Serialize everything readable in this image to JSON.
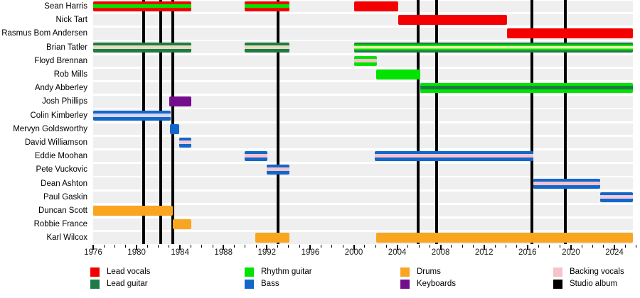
{
  "chart_data": {
    "type": "timeline",
    "description": "Band member timeline gantt chart with studio album release lines",
    "x_axis": {
      "start_year": 1976,
      "end_year": 2025.7,
      "tick_every_years": 1,
      "label_every_years": 4,
      "tick_labels": [
        "1976",
        "1980",
        "1984",
        "1988",
        "1992",
        "1996",
        "2000",
        "2004",
        "2008",
        "2012",
        "2016",
        "2020",
        "2024"
      ]
    },
    "album_release_years": [
      1980.65,
      1982.2,
      1983.35,
      1993.0,
      2005.9,
      2007.65,
      2016.4,
      2019.5
    ],
    "members": [
      {
        "name": "Sean Harris",
        "segments": [
          {
            "start": 1976.0,
            "end": 1985.05,
            "base": "lead_vocals",
            "stripes": [
              "rhythm_guitar"
            ]
          },
          {
            "start": 1989.95,
            "end": 1994.1,
            "base": "lead_vocals",
            "stripes": [
              "rhythm_guitar"
            ]
          },
          {
            "start": 2000.0,
            "end": 2004.1,
            "base": "lead_vocals",
            "stripes": []
          }
        ]
      },
      {
        "name": "Nick Tart",
        "segments": [
          {
            "start": 2004.1,
            "end": 2014.1,
            "base": "lead_vocals",
            "stripes": []
          }
        ]
      },
      {
        "name": "Rasmus Bom Andersen",
        "segments": [
          {
            "start": 2014.1,
            "end": 2025.7,
            "base": "lead_vocals",
            "stripes": []
          }
        ]
      },
      {
        "name": "Brian Tatler",
        "segments": [
          {
            "start": 1976.0,
            "end": 1985.05,
            "base": "lead_guitar",
            "stripes": [
              "stripe_wheat"
            ]
          },
          {
            "start": 1989.95,
            "end": 1994.1,
            "base": "lead_guitar",
            "stripes": [
              "stripe_wheat"
            ]
          },
          {
            "start": 2000.0,
            "end": 2025.7,
            "base": "lead_guitar",
            "stripes": [
              "rhythm_guitar",
              "stripe_pale_yellow"
            ]
          }
        ]
      },
      {
        "name": "Floyd Brennan",
        "segments": [
          {
            "start": 2000.0,
            "end": 2002.1,
            "base": "rhythm_guitar",
            "stripes": [
              "backing_vocals"
            ]
          }
        ]
      },
      {
        "name": "Rob Mills",
        "segments": [
          {
            "start": 2002.05,
            "end": 2006.1,
            "base": "rhythm_guitar",
            "stripes": []
          }
        ]
      },
      {
        "name": "Andy Abberley",
        "segments": [
          {
            "start": 2006.15,
            "end": 2025.7,
            "base": "rhythm_guitar",
            "stripes": [
              "lead_guitar"
            ]
          }
        ]
      },
      {
        "name": "Josh Phillips",
        "segments": [
          {
            "start": 1983.0,
            "end": 1985.05,
            "base": "keyboards",
            "stripes": []
          }
        ]
      },
      {
        "name": "Colin Kimberley",
        "segments": [
          {
            "start": 1976.0,
            "end": 1983.15,
            "base": "bass",
            "stripes": [
              "stripe_lavender"
            ]
          }
        ]
      },
      {
        "name": "Mervyn Goldsworthy",
        "segments": [
          {
            "start": 1983.1,
            "end": 1983.95,
            "base": "bass",
            "stripes": []
          }
        ]
      },
      {
        "name": "David Williamson",
        "segments": [
          {
            "start": 1983.95,
            "end": 1985.05,
            "base": "bass",
            "stripes": [
              "stripe_pale_pink"
            ]
          }
        ]
      },
      {
        "name": "Eddie Moohan",
        "segments": [
          {
            "start": 1989.95,
            "end": 1992.05,
            "base": "bass",
            "stripes": [
              "backing_vocals"
            ]
          },
          {
            "start": 2001.95,
            "end": 2016.55,
            "base": "bass",
            "stripes": [
              "backing_vocals"
            ]
          }
        ]
      },
      {
        "name": "Pete Vuckovic",
        "segments": [
          {
            "start": 1992.0,
            "end": 1994.1,
            "base": "bass",
            "stripes": [
              "backing_vocals"
            ]
          }
        ]
      },
      {
        "name": "Dean Ashton",
        "segments": [
          {
            "start": 2016.55,
            "end": 2022.7,
            "base": "bass",
            "stripes": [
              "backing_vocals"
            ]
          }
        ]
      },
      {
        "name": "Paul Gaskin",
        "segments": [
          {
            "start": 2022.7,
            "end": 2025.7,
            "base": "bass",
            "stripes": [
              "stripe_pale_pink"
            ]
          }
        ]
      },
      {
        "name": "Duncan Scott",
        "segments": [
          {
            "start": 1976.0,
            "end": 1983.35,
            "base": "drums",
            "stripes": []
          }
        ]
      },
      {
        "name": "Robbie France",
        "segments": [
          {
            "start": 1983.35,
            "end": 1985.05,
            "base": "drums",
            "stripes": []
          }
        ]
      },
      {
        "name": "Karl Wilcox",
        "segments": [
          {
            "start": 1990.95,
            "end": 1994.1,
            "base": "drums",
            "stripes": []
          },
          {
            "start": 2002.05,
            "end": 2025.7,
            "base": "drums",
            "stripes": []
          }
        ]
      }
    ],
    "legend": [
      {
        "label": "Lead vocals",
        "color_key": "lead_vocals",
        "col": 0,
        "row": 0
      },
      {
        "label": "Lead guitar",
        "color_key": "lead_guitar",
        "col": 0,
        "row": 1
      },
      {
        "label": "Rhythm guitar",
        "color_key": "rhythm_guitar",
        "col": 1,
        "row": 0
      },
      {
        "label": "Bass",
        "color_key": "bass",
        "col": 1,
        "row": 1
      },
      {
        "label": "Drums",
        "color_key": "drums",
        "col": 2,
        "row": 0
      },
      {
        "label": "Keyboards",
        "color_key": "keyboards",
        "col": 2,
        "row": 1
      },
      {
        "label": "Backing vocals",
        "color_key": "backing_vocals",
        "col": 3,
        "row": 0
      },
      {
        "label": "Studio album",
        "color_key": "studio_album",
        "col": 3,
        "row": 1
      }
    ]
  },
  "palette": {
    "lead_vocals": "#F50000",
    "lead_guitar": "#1E7B46",
    "rhythm_guitar": "#00E400",
    "bass": "#1267CB",
    "drums": "#FAA520",
    "keyboards": "#740D8C",
    "backing_vocals": "#F6C2CC",
    "studio_album": "#000000",
    "stripe_wheat": "#E8DCBC",
    "stripe_lavender": "#D7D5EF",
    "stripe_pale_yellow": "#ECEFAC",
    "stripe_pale_pink": "#F2CCD6",
    "row_band": "#EFEFEF"
  }
}
